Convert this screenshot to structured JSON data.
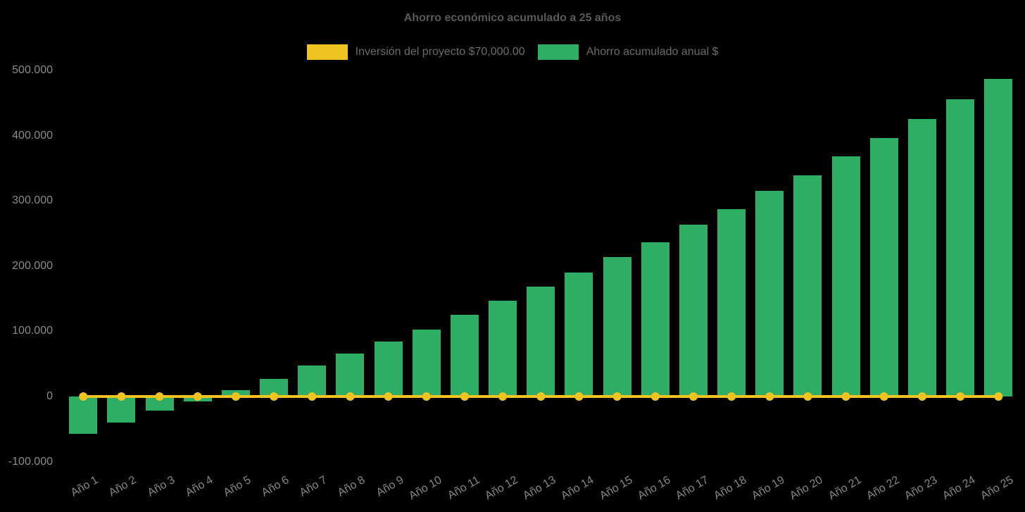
{
  "page": {
    "background_color": "#000000"
  },
  "legend": {
    "position": "top",
    "items": [
      {
        "label": "Inversión del proyecto $70,000.00",
        "color": "#F0C420",
        "series_type": "line"
      },
      {
        "label": "Ahorro acumulado anual $",
        "color": "#2DAE64",
        "series_type": "bar"
      }
    ]
  },
  "chart_data": {
    "type": "bar",
    "title": "Ahorro económico acumulado a 25 años",
    "categories": [
      "Año 1",
      "Año 2",
      "Año 3",
      "Año 4",
      "Año 5",
      "Año 6",
      "Año 7",
      "Año 8",
      "Año 9",
      "Año 10",
      "Año 11",
      "Año 12",
      "Año 13",
      "Año 14",
      "Año 15",
      "Año 16",
      "Año 17",
      "Año 18",
      "Año 19",
      "Año 20",
      "Año 21",
      "Año 22",
      "Año 23",
      "Año 24",
      "Año 25"
    ],
    "series": [
      {
        "name": "Ahorro acumulado anual $",
        "type": "bar",
        "color": "#2DAE64",
        "values": [
          -57000,
          -39500,
          -21500,
          -7500,
          10000,
          27500,
          47000,
          66000,
          84500,
          103000,
          125000,
          147000,
          168000,
          190500,
          213500,
          237000,
          263000,
          287000,
          315000,
          339000,
          368000,
          396000,
          425000,
          456000,
          487000
        ]
      },
      {
        "name": "Inversión del proyecto $70,000.00",
        "type": "line",
        "color": "#F0C420",
        "marker": "circle",
        "values": [
          0,
          0,
          0,
          0,
          0,
          0,
          0,
          0,
          0,
          0,
          0,
          0,
          0,
          0,
          0,
          0,
          0,
          0,
          0,
          0,
          0,
          0,
          0,
          0,
          0
        ]
      }
    ],
    "y_axis": {
      "min": -100000,
      "max": 500000,
      "grid": false,
      "ticks": [
        {
          "label": "500.000",
          "value": 500000
        },
        {
          "label": "400.000",
          "value": 400000
        },
        {
          "label": "300.000",
          "value": 300000
        },
        {
          "label": "200.000",
          "value": 200000
        },
        {
          "label": "100.000",
          "value": 100000
        },
        {
          "label": "0",
          "value": 0
        },
        {
          "label": "-100.000",
          "value": -100000
        }
      ]
    },
    "x_axis": {
      "label_rotation_deg": -30
    },
    "legend_position": "top",
    "text_colors": {
      "title": "#58595B",
      "legend": "#6A6A6C",
      "axis": "#8A8A8A"
    }
  }
}
